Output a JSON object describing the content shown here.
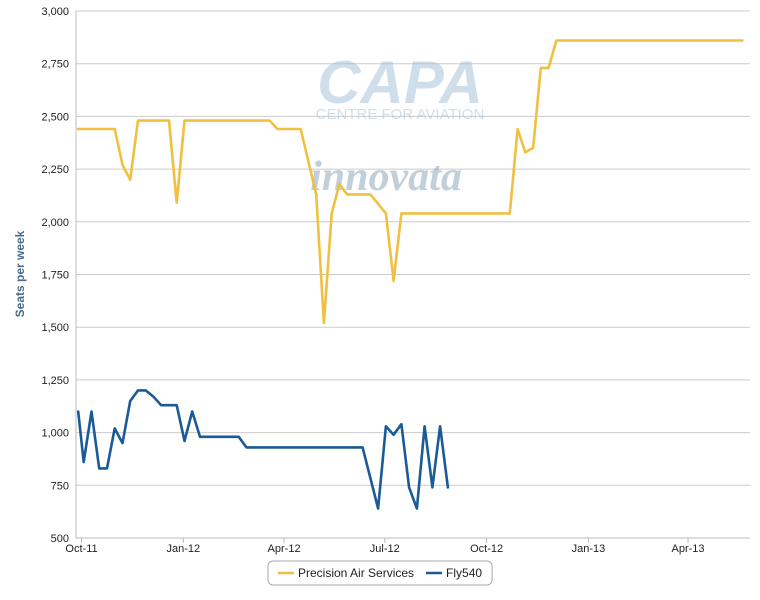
{
  "chart_data": {
    "type": "line",
    "ylabel": "Seats per week",
    "ylim": [
      500,
      3000
    ],
    "yticks": [
      {
        "value": 3000,
        "label": "3,000"
      },
      {
        "value": 2750,
        "label": "2,750"
      },
      {
        "value": 2500,
        "label": "2,500"
      },
      {
        "value": 2250,
        "label": "2,250"
      },
      {
        "value": 2000,
        "label": "2,000"
      },
      {
        "value": 1750,
        "label": "1,750"
      },
      {
        "value": 1500,
        "label": "1,500"
      },
      {
        "value": 1250,
        "label": "1,250"
      },
      {
        "value": 1000,
        "label": "1,000"
      },
      {
        "value": 750,
        "label": "750"
      },
      {
        "value": 500,
        "label": "500"
      }
    ],
    "xlim": [
      "2011-09-26",
      "2013-05-27"
    ],
    "xticks": [
      {
        "date": "2011-10-01",
        "label": "Oct-11"
      },
      {
        "date": "2012-01-01",
        "label": "Jan-12"
      },
      {
        "date": "2012-04-01",
        "label": "Apr-12"
      },
      {
        "date": "2012-07-01",
        "label": "Jul-12"
      },
      {
        "date": "2012-10-01",
        "label": "Oct-12"
      },
      {
        "date": "2013-01-01",
        "label": "Jan-13"
      },
      {
        "date": "2013-04-01",
        "label": "Apr-13"
      }
    ],
    "grid": true,
    "legend_position": "bottom",
    "watermark": {
      "logo": "CAPA",
      "line2": "CENTRE FOR AVIATION",
      "line3": "innovata"
    },
    "series": [
      {
        "name": "Precision Air Services",
        "color": "#f0c040",
        "points": [
          [
            "2011-09-28",
            2440
          ],
          [
            "2011-10-31",
            2440
          ],
          [
            "2011-11-07",
            2270
          ],
          [
            "2011-11-14",
            2200
          ],
          [
            "2011-11-21",
            2480
          ],
          [
            "2011-12-19",
            2480
          ],
          [
            "2011-12-26",
            2090
          ],
          [
            "2012-01-02",
            2480
          ],
          [
            "2012-03-19",
            2480
          ],
          [
            "2012-03-26",
            2440
          ],
          [
            "2012-04-16",
            2440
          ],
          [
            "2012-04-30",
            2130
          ],
          [
            "2012-05-07",
            1520
          ],
          [
            "2012-05-14",
            2040
          ],
          [
            "2012-05-21",
            2180
          ],
          [
            "2012-05-28",
            2130
          ],
          [
            "2012-06-18",
            2130
          ],
          [
            "2012-07-02",
            2040
          ],
          [
            "2012-07-09",
            1720
          ],
          [
            "2012-07-16",
            2040
          ],
          [
            "2012-10-22",
            2040
          ],
          [
            "2012-10-29",
            2440
          ],
          [
            "2012-11-05",
            2330
          ],
          [
            "2012-11-12",
            2350
          ],
          [
            "2012-11-19",
            2730
          ],
          [
            "2012-11-26",
            2730
          ],
          [
            "2012-12-03",
            2860
          ],
          [
            "2013-05-20",
            2860
          ]
        ]
      },
      {
        "name": "Fly540",
        "color": "#1a5a96",
        "points": [
          [
            "2011-09-28",
            1100
          ],
          [
            "2011-10-03",
            860
          ],
          [
            "2011-10-10",
            1100
          ],
          [
            "2011-10-17",
            830
          ],
          [
            "2011-10-24",
            830
          ],
          [
            "2011-10-31",
            1020
          ],
          [
            "2011-11-07",
            950
          ],
          [
            "2011-11-14",
            1150
          ],
          [
            "2011-11-21",
            1200
          ],
          [
            "2011-11-28",
            1200
          ],
          [
            "2011-12-05",
            1170
          ],
          [
            "2011-12-12",
            1130
          ],
          [
            "2011-12-26",
            1130
          ],
          [
            "2012-01-02",
            960
          ],
          [
            "2012-01-09",
            1100
          ],
          [
            "2012-01-16",
            980
          ],
          [
            "2012-02-06",
            980
          ],
          [
            "2012-02-20",
            980
          ],
          [
            "2012-02-27",
            930
          ],
          [
            "2012-06-11",
            930
          ],
          [
            "2012-06-25",
            640
          ],
          [
            "2012-07-02",
            1030
          ],
          [
            "2012-07-09",
            990
          ],
          [
            "2012-07-16",
            1040
          ],
          [
            "2012-07-23",
            740
          ],
          [
            "2012-07-30",
            640
          ],
          [
            "2012-08-06",
            1030
          ],
          [
            "2012-08-13",
            740
          ],
          [
            "2012-08-20",
            1030
          ],
          [
            "2012-08-27",
            740
          ]
        ]
      }
    ]
  }
}
